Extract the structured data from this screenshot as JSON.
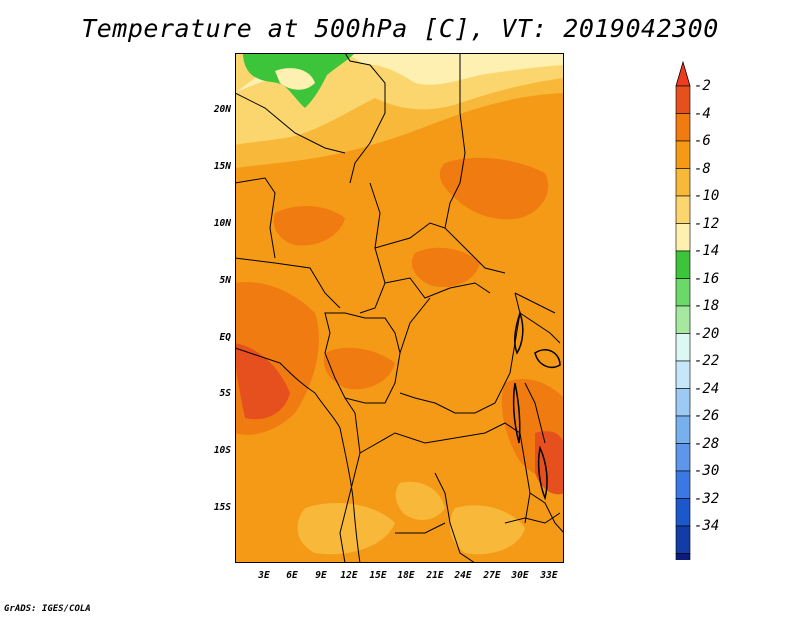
{
  "title": "Temperature at 500hPa [C], VT: 2019042300",
  "credit": "GrADS: IGES/COLA",
  "map": {
    "lat_labels": [
      "20N",
      "15N",
      "10N",
      "5N",
      "EQ",
      "5S",
      "10S",
      "15S"
    ],
    "lon_labels": [
      "3E",
      "6E",
      "9E",
      "12E",
      "15E",
      "18E",
      "21E",
      "24E",
      "27E",
      "30E",
      "33E"
    ]
  },
  "colorbar": {
    "labels": [
      "-2",
      "-4",
      "-6",
      "-8",
      "-10",
      "-12",
      "-14",
      "-16",
      "-18",
      "-20",
      "-22",
      "-24",
      "-26",
      "-28",
      "-30",
      "-32",
      "-34"
    ],
    "colors": [
      "#e6501e",
      "#f07b10",
      "#f59a16",
      "#f8b83a",
      "#fbd66e",
      "#fdf0b0",
      "#3cc43a",
      "#6cd86a",
      "#a6e8a0",
      "#dcf8f4",
      "#c6e6fa",
      "#9ccaf2",
      "#78b0ee",
      "#5e96ec",
      "#3c78e4",
      "#1c58cc",
      "#143ca6",
      "#0c1c78"
    ],
    "top_cap_color": "#f03c1e",
    "bottom_cap_color": "#d8dcf8"
  }
}
